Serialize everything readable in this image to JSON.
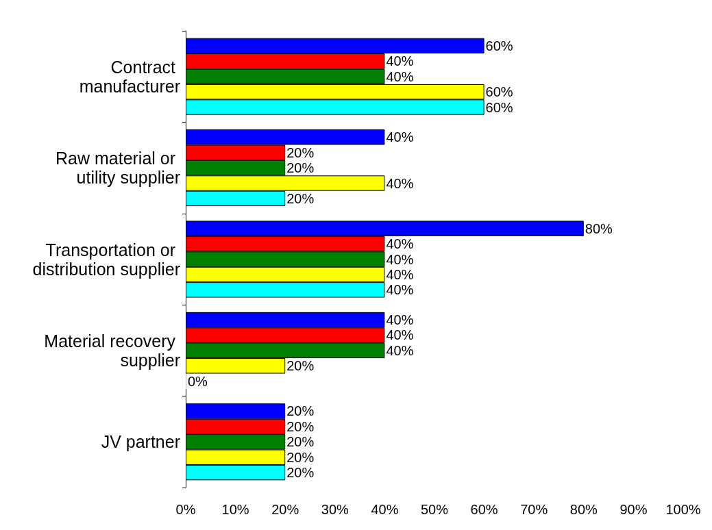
{
  "chart_data": {
    "type": "bar",
    "orientation": "horizontal",
    "categories": [
      "Contract manufacturer",
      "Raw material or utility supplier",
      "Transportation or distribution supplier",
      "Material recovery supplier",
      "JV partner"
    ],
    "series": [
      {
        "color": "#0000ff",
        "values": [
          60,
          40,
          80,
          40,
          20
        ],
        "value_labels": [
          "60%",
          "40%",
          "80%",
          "40%",
          "20%"
        ]
      },
      {
        "color": "#ff0000",
        "values": [
          40,
          20,
          40,
          40,
          20
        ],
        "value_labels": [
          "40%",
          "20%",
          "40%",
          "40%",
          "20%"
        ]
      },
      {
        "color": "#008000",
        "values": [
          40,
          20,
          40,
          40,
          20
        ],
        "value_labels": [
          "40%",
          "20%",
          "40%",
          "40%",
          "20%"
        ]
      },
      {
        "color": "#ffff00",
        "values": [
          60,
          40,
          40,
          20,
          20
        ],
        "value_labels": [
          "60%",
          "40%",
          "40%",
          "20%",
          "20%"
        ]
      },
      {
        "color": "#00ffff",
        "values": [
          60,
          20,
          40,
          0,
          20
        ],
        "value_labels": [
          "60%",
          "20%",
          "40%",
          "0%",
          "20%"
        ]
      }
    ],
    "xlim": [
      0,
      100
    ],
    "xticks": [
      {
        "value": 0,
        "label": "0%"
      },
      {
        "value": 10,
        "label": "10%"
      },
      {
        "value": 20,
        "label": "20%"
      },
      {
        "value": 30,
        "label": "30%"
      },
      {
        "value": 40,
        "label": "40%"
      },
      {
        "value": 50,
        "label": "50%"
      },
      {
        "value": 60,
        "label": "60%"
      },
      {
        "value": 70,
        "label": "70%"
      },
      {
        "value": 80,
        "label": "80%"
      },
      {
        "value": 90,
        "label": "90%"
      },
      {
        "value": 100,
        "label": "100%"
      }
    ],
    "grid": false
  }
}
